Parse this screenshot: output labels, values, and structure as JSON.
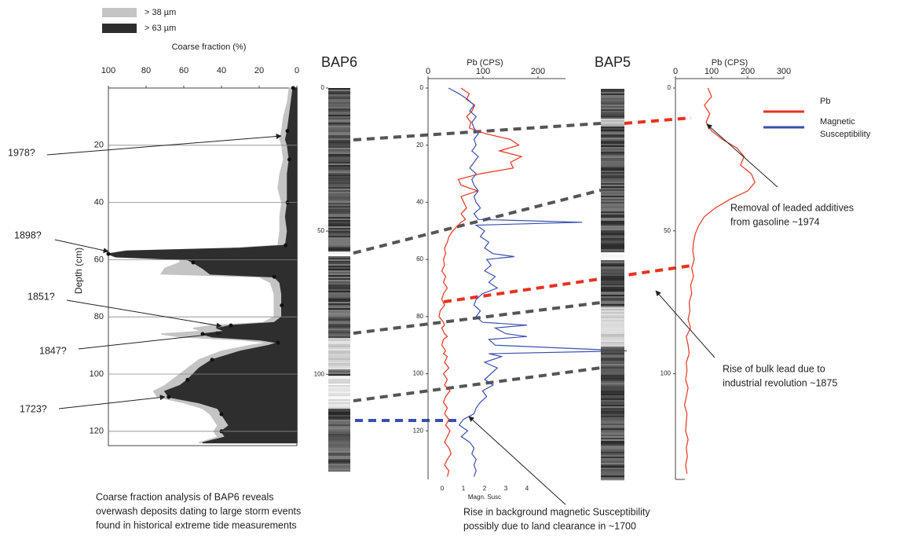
{
  "chart_data": [
    {
      "type": "area-profile",
      "y_label": "Coarse fraction (%)",
      "x_label": "Depth (cm)",
      "x": [
        0,
        5,
        10,
        15,
        18,
        20,
        25,
        30,
        35,
        40,
        45,
        50,
        55,
        56,
        57,
        58,
        59,
        60,
        61,
        63,
        65,
        66,
        68,
        72,
        76,
        80,
        82,
        83,
        84,
        85,
        86,
        87,
        88,
        89,
        90,
        92,
        95,
        98,
        100,
        102,
        104,
        106,
        108,
        110,
        112,
        114,
        116,
        118,
        120,
        122,
        124
      ],
      "series": [
        {
          "name": "> 38 µm",
          "color": "#c4c4c4",
          "values": [
            4,
            5,
            7,
            8,
            9,
            8,
            7,
            9,
            10,
            8,
            9,
            9,
            10,
            35,
            92,
            100,
            97,
            62,
            62,
            70,
            72,
            20,
            14,
            12,
            12,
            12,
            18,
            45,
            55,
            50,
            72,
            62,
            30,
            15,
            25,
            40,
            52,
            58,
            62,
            66,
            70,
            76,
            74,
            60,
            50,
            46,
            44,
            42,
            44,
            42,
            52
          ]
        },
        {
          "name": "> 63 µm",
          "color": "#2e2e2e",
          "values": [
            2,
            3,
            4,
            5,
            6,
            5,
            4,
            5,
            5,
            5,
            6,
            5,
            6,
            30,
            90,
            100,
            96,
            58,
            55,
            50,
            46,
            12,
            9,
            8,
            8,
            8,
            12,
            35,
            42,
            38,
            50,
            45,
            20,
            10,
            15,
            30,
            45,
            52,
            55,
            58,
            62,
            70,
            68,
            52,
            42,
            40,
            38,
            36,
            40,
            38,
            50
          ]
        }
      ],
      "xlim": [
        0,
        125
      ],
      "xticks": [
        20,
        40,
        60,
        80,
        100,
        120
      ],
      "ylim": [
        100,
        0
      ],
      "yticks": [
        100,
        80,
        60,
        40,
        20,
        0
      ],
      "grid": true,
      "annotations": [
        "1978?",
        "1898?",
        "1851?",
        "1847?",
        "1723?"
      ],
      "caption": [
        "Coarse fraction analysis of BAP6 reveals",
        "overwash deposits dating to large storm events",
        "found in historical extreme tide measurements"
      ]
    },
    {
      "type": "core",
      "title": "BAP6",
      "xlim": [
        0,
        134
      ],
      "xticks": [
        0,
        50,
        100
      ]
    },
    {
      "type": "line-profile",
      "y_label": "Pb (CPS)",
      "y2_label": "Magn. Susc",
      "x": [
        0,
        2,
        4,
        6,
        8,
        10,
        12,
        14,
        16,
        18,
        20,
        22,
        24,
        26,
        28,
        30,
        32,
        34,
        36,
        38,
        40,
        42,
        44,
        46,
        47,
        48,
        50,
        52,
        54,
        56,
        58,
        59,
        60,
        62,
        64,
        66,
        68,
        70,
        72,
        74,
        76,
        78,
        80,
        82,
        83,
        84,
        86,
        87,
        88,
        90,
        92,
        93,
        94,
        96,
        98,
        100,
        102,
        104,
        106,
        108,
        110,
        112,
        114,
        116,
        118,
        120,
        122,
        124,
        126,
        128,
        130,
        132,
        134,
        136
      ],
      "series": [
        {
          "name": "Pb",
          "color": "#e8321e",
          "values": [
            60,
            75,
            70,
            85,
            80,
            70,
            78,
            75,
            105,
            150,
            165,
            130,
            170,
            150,
            155,
            95,
            55,
            60,
            90,
            60,
            65,
            70,
            60,
            68,
            60,
            55,
            45,
            38,
            35,
            30,
            32,
            30,
            28,
            30,
            25,
            32,
            28,
            35,
            28,
            25,
            30,
            22,
            20,
            28,
            30,
            25,
            30,
            35,
            28,
            25,
            32,
            28,
            35,
            30,
            38,
            28,
            35,
            30,
            40,
            32,
            28,
            35,
            30,
            38,
            32,
            40,
            35,
            30,
            38,
            42,
            35,
            30,
            38,
            35
          ]
        },
        {
          "name": "Magnetic Susceptibility",
          "color": "#3a4fb0",
          "axis": "y2",
          "values": [
            0.3,
            0.8,
            1.2,
            1.5,
            1.3,
            1.6,
            1.4,
            1.5,
            1.7,
            1.5,
            1.6,
            1.4,
            1.7,
            1.5,
            1.3,
            1.6,
            1.4,
            1.5,
            1.7,
            1.5,
            1.6,
            1.8,
            1.5,
            1.7,
            6.6,
            1.6,
            2.0,
            1.8,
            2.2,
            2.0,
            2.4,
            3.4,
            2.1,
            2.3,
            2.0,
            2.5,
            2.2,
            2.6,
            1.9,
            1.6,
            1.5,
            1.8,
            1.6,
            1.9,
            4.0,
            2.5,
            3.0,
            4.0,
            2.2,
            2.5,
            8.7,
            2.2,
            2.8,
            2.0,
            2.6,
            2.3,
            2.0,
            2.4,
            1.9,
            2.1,
            1.8,
            1.6,
            1.5,
            1.0,
            0.8,
            1.2,
            0.9,
            1.3,
            1.5,
            1.4,
            1.6,
            1.5,
            1.6,
            1.5
          ]
        }
      ],
      "xlim": [
        0,
        137
      ],
      "xticks": [
        0,
        20,
        40,
        60,
        80,
        100,
        120
      ],
      "ylim": [
        0,
        250
      ],
      "yticks": [
        0,
        100,
        200
      ],
      "y2lim": [
        0,
        9
      ],
      "y2ticks": [
        0,
        1,
        2,
        3,
        4
      ],
      "annotations": [
        [
          "Rise in background magnetic Susceptibility",
          "possibly due to land clearance in ~1700"
        ]
      ]
    },
    {
      "type": "core",
      "title": "BAP5"
    },
    {
      "type": "line-profile",
      "y_label": "Pb (CPS)",
      "x": [
        0,
        3,
        6,
        9,
        12,
        15,
        18,
        21,
        24,
        27,
        30,
        33,
        36,
        39,
        42,
        45,
        48,
        51,
        54,
        57,
        60,
        63,
        66,
        69,
        72,
        75,
        78,
        81,
        84,
        87,
        90,
        93,
        96,
        99,
        102,
        105,
        108,
        111,
        114,
        117,
        120,
        123,
        126,
        129,
        132,
        135
      ],
      "series": [
        {
          "color": "#e8321e",
          "values": [
            90,
            100,
            80,
            95,
            85,
            100,
            130,
            170,
            190,
            180,
            210,
            220,
            200,
            150,
            110,
            80,
            65,
            55,
            50,
            48,
            52,
            45,
            50,
            42,
            45,
            38,
            40,
            35,
            42,
            30,
            35,
            38,
            30,
            32,
            28,
            35,
            30,
            25,
            32,
            30,
            28,
            35,
            30,
            33,
            28,
            32
          ]
        }
      ],
      "xlim": [
        0,
        137
      ],
      "xticks": [
        0,
        50,
        100
      ],
      "ylim": [
        0,
        300
      ],
      "yticks": [
        0,
        100,
        200,
        300
      ],
      "annotations": [
        [
          "Removal of leaded additives",
          "from gasoline ~1974"
        ],
        [
          "Rise of bulk lead due to",
          "industrial revolution ~1875"
        ]
      ]
    }
  ]
}
